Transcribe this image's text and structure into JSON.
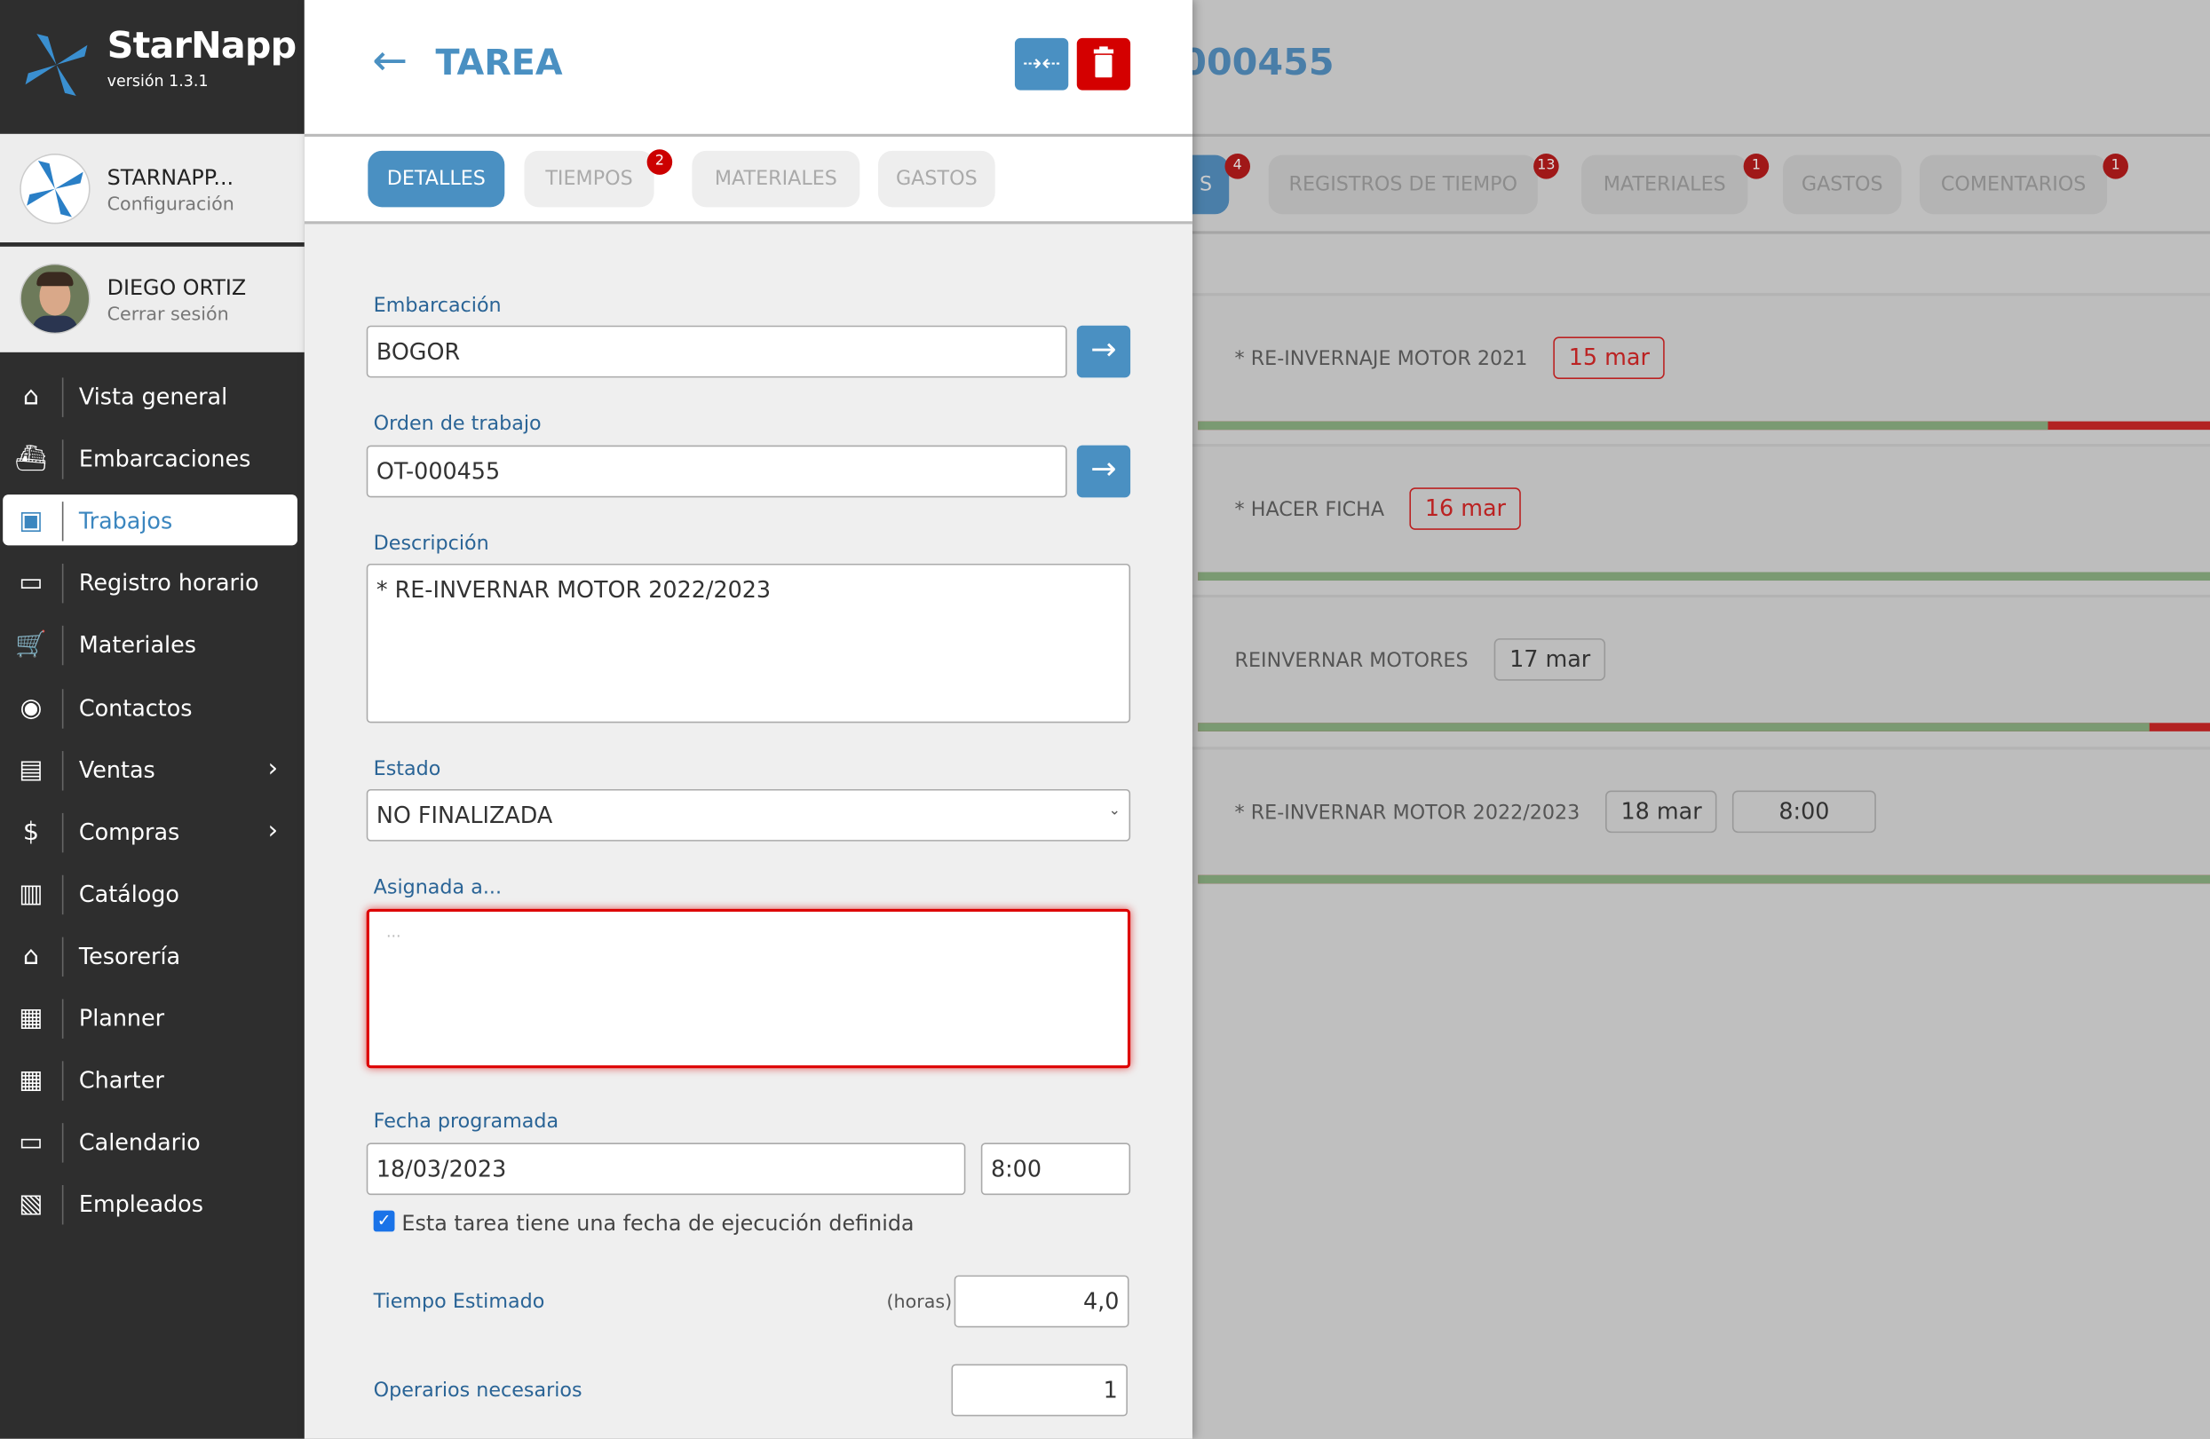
{
  "app": {
    "name": "StarNapp",
    "version": "versión 1.3.1"
  },
  "org": {
    "name": "STARNAPP...",
    "sub": "Configuración"
  },
  "user": {
    "name": "DIEGO ORTIZ",
    "sub": "Cerrar sesión"
  },
  "nav": [
    {
      "label": "Vista general",
      "icon": "home-icon",
      "glyph": "⌂"
    },
    {
      "label": "Embarcaciones",
      "icon": "ship-icon",
      "glyph": "⛴"
    },
    {
      "label": "Trabajos",
      "icon": "inbox-icon",
      "glyph": "▣",
      "active": true
    },
    {
      "label": "Registro horario",
      "icon": "calendar-icon",
      "glyph": "▭"
    },
    {
      "label": "Materiales",
      "icon": "cart-icon",
      "glyph": "🛒"
    },
    {
      "label": "Contactos",
      "icon": "contacts-icon",
      "glyph": "◉"
    },
    {
      "label": "Ventas",
      "icon": "register-icon",
      "glyph": "▤",
      "chevron": true
    },
    {
      "label": "Compras",
      "icon": "dollar-icon",
      "glyph": "$",
      "chevron": true
    },
    {
      "label": "Catálogo",
      "icon": "archive-icon",
      "glyph": "▥"
    },
    {
      "label": "Tesorería",
      "icon": "bank-icon",
      "glyph": "⌂"
    },
    {
      "label": "Planner",
      "icon": "clipboard-clock-icon",
      "glyph": "▦"
    },
    {
      "label": "Charter",
      "icon": "grid-icon",
      "glyph": "▦"
    },
    {
      "label": "Calendario",
      "icon": "calendar-icon",
      "glyph": "▭"
    },
    {
      "label": "Empleados",
      "icon": "id-badge-icon",
      "glyph": "▧"
    }
  ],
  "panel": {
    "title": "TAREA",
    "tabs": [
      {
        "label": "DETALLES",
        "active": true
      },
      {
        "label": "TIEMPOS",
        "badge": "2"
      },
      {
        "label": "MATERIALES"
      },
      {
        "label": "GASTOS"
      }
    ],
    "form": {
      "embarcacion_label": "Embarcación",
      "embarcacion": "BOGOR",
      "orden_label": "Orden de trabajo",
      "orden": "OT-000455",
      "descripcion_label": "Descripción",
      "descripcion": "* RE-INVERNAR MOTOR 2022/2023",
      "estado_label": "Estado",
      "estado": "NO FINALIZADA",
      "asignada_label": "Asignada a...",
      "asignada_placeholder": "...",
      "fecha_label": "Fecha programada",
      "fecha": "18/03/2023",
      "hora": "8:00",
      "check_label": "Esta tarea tiene una fecha de ejecución definida",
      "checked": true,
      "tiempo_label": "Tiempo Estimado",
      "tiempo_unit": "(horas)",
      "tiempo": "4,0",
      "operarios_label": "Operarios necesarios",
      "operarios": "1"
    }
  },
  "background": {
    "title": "000455",
    "tabs": [
      {
        "label": "S",
        "badge": "4"
      },
      {
        "label": "REGISTROS DE TIEMPO",
        "badge": "13"
      },
      {
        "label": "MATERIALES",
        "badge": "1"
      },
      {
        "label": "GASTOS"
      },
      {
        "label": "COMENTARIOS",
        "badge": "1"
      }
    ],
    "tasks": [
      {
        "name": "* RE-INVERNAJE MOTOR 2021",
        "date": "15 mar",
        "overdue": true,
        "progress_pct": 84
      },
      {
        "name": "* HACER FICHA",
        "date": "16 mar",
        "overdue": true,
        "progress_pct": 100
      },
      {
        "name": "REINVERNAR MOTORES",
        "date": "17 mar",
        "overdue": false,
        "progress_pct": 94
      },
      {
        "name": "* RE-INVERNAR MOTOR 2022/2023",
        "date": "18 mar",
        "time": "8:00",
        "overdue": false,
        "progress_pct": 100
      }
    ]
  },
  "colors": {
    "accent": "#4a90c2",
    "danger": "#cc0000",
    "sidebar": "#2e2e2e",
    "progress_ok": "#7a9a72",
    "progress_over": "#b22222"
  }
}
